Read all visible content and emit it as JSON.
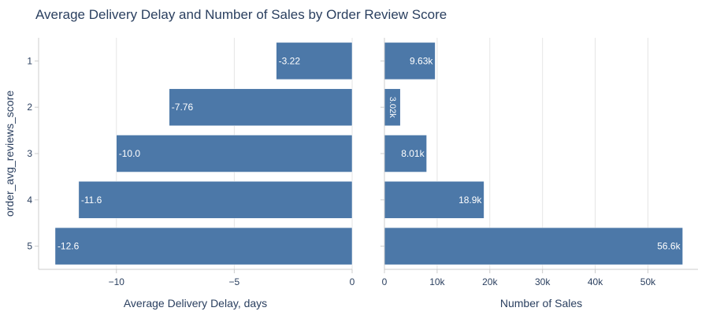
{
  "chart_data": {
    "type": "bar",
    "orientation": "horizontal",
    "title": "Average Delivery Delay and Number of Sales by Order Review Score",
    "ylabel": "order_avg_reviews_score",
    "categories": [
      "1",
      "2",
      "3",
      "4",
      "5"
    ],
    "grid": true,
    "bar_color": "#4c78a8",
    "panels": [
      {
        "xlabel": "Average Delivery Delay, days",
        "xlim": [
          -13.3,
          0
        ],
        "xticks": [
          -10,
          -5,
          0
        ],
        "xtick_labels": [
          "−10",
          "−5",
          "0"
        ],
        "series": [
          {
            "values": [
              -3.22,
              -7.76,
              -10.0,
              -11.6,
              -12.6
            ],
            "labels": [
              "-3.22",
              "-7.76",
              "-10.0",
              "-11.6",
              "-12.6"
            ]
          }
        ]
      },
      {
        "xlabel": "Number of Sales",
        "xlim": [
          0,
          59500
        ],
        "xticks": [
          0,
          10000,
          20000,
          30000,
          40000,
          50000
        ],
        "xtick_labels": [
          "0",
          "10k",
          "20k",
          "30k",
          "40k",
          "50k"
        ],
        "series": [
          {
            "values": [
              9630,
              3020,
              8010,
              18900,
              56600
            ],
            "labels": [
              "9.63k",
              "3.02k",
              "8.01k",
              "18.9k",
              "56.6k"
            ]
          }
        ]
      }
    ]
  }
}
